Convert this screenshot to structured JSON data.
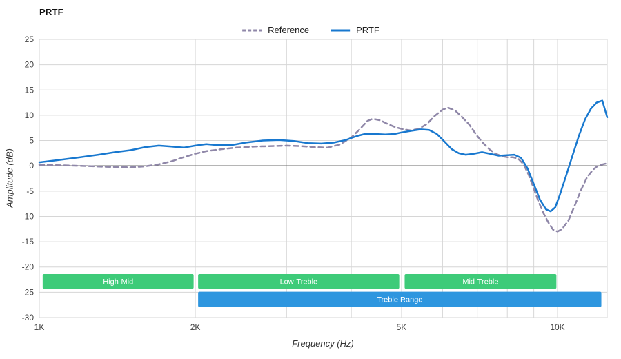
{
  "chart_data": {
    "type": "line",
    "title": "PRTF",
    "xlabel": "Frequency (Hz)",
    "ylabel": "Amplitude (dB)",
    "x_scale": "log",
    "xlim": [
      1000,
      12470
    ],
    "ylim": [
      -30,
      25
    ],
    "grid": true,
    "legend_position": "top-center",
    "y_ticks": [
      25,
      20,
      15,
      10,
      5,
      0,
      -5,
      -10,
      -15,
      -20,
      -25,
      -30
    ],
    "x_ticks": [
      {
        "value": 1000,
        "label": "1K"
      },
      {
        "value": 2000,
        "label": "2K"
      },
      {
        "value": 5000,
        "label": "5K"
      },
      {
        "value": 10000,
        "label": "10K"
      }
    ],
    "x_gridlines": [
      2000,
      3000,
      4000,
      5000,
      6000,
      7000,
      8000,
      9000,
      10000
    ],
    "zero_line_db": 0,
    "series": [
      {
        "name": "Reference",
        "color": "#8f87a8",
        "dashed": true,
        "points": [
          [
            1000,
            0.2
          ],
          [
            1100,
            0.1
          ],
          [
            1200,
            0.0
          ],
          [
            1350,
            -0.2
          ],
          [
            1500,
            -0.3
          ],
          [
            1600,
            -0.1
          ],
          [
            1700,
            0.3
          ],
          [
            1800,
            0.9
          ],
          [
            1900,
            1.7
          ],
          [
            2000,
            2.4
          ],
          [
            2100,
            2.9
          ],
          [
            2250,
            3.3
          ],
          [
            2400,
            3.6
          ],
          [
            2600,
            3.8
          ],
          [
            2800,
            3.9
          ],
          [
            3000,
            4.0
          ],
          [
            3200,
            3.9
          ],
          [
            3400,
            3.7
          ],
          [
            3600,
            3.6
          ],
          [
            3800,
            4.2
          ],
          [
            4000,
            5.6
          ],
          [
            4150,
            7.2
          ],
          [
            4300,
            8.9
          ],
          [
            4400,
            9.3
          ],
          [
            4550,
            9.0
          ],
          [
            4700,
            8.3
          ],
          [
            4850,
            7.7
          ],
          [
            5000,
            7.3
          ],
          [
            5200,
            7.0
          ],
          [
            5400,
            7.3
          ],
          [
            5600,
            8.3
          ],
          [
            5800,
            9.9
          ],
          [
            6000,
            11.1
          ],
          [
            6150,
            11.5
          ],
          [
            6350,
            10.9
          ],
          [
            6550,
            9.6
          ],
          [
            6750,
            8.2
          ],
          [
            7000,
            5.9
          ],
          [
            7200,
            4.4
          ],
          [
            7400,
            3.2
          ],
          [
            7600,
            2.4
          ],
          [
            7800,
            1.9
          ],
          [
            8000,
            1.7
          ],
          [
            8200,
            1.7
          ],
          [
            8400,
            1.4
          ],
          [
            8600,
            0.3
          ],
          [
            8800,
            -1.8
          ],
          [
            9000,
            -4.5
          ],
          [
            9200,
            -7.2
          ],
          [
            9400,
            -9.4
          ],
          [
            9600,
            -11.2
          ],
          [
            9800,
            -12.6
          ],
          [
            10000,
            -13.0
          ],
          [
            10200,
            -12.5
          ],
          [
            10500,
            -10.8
          ],
          [
            10800,
            -7.8
          ],
          [
            11100,
            -4.8
          ],
          [
            11400,
            -2.3
          ],
          [
            11700,
            -0.8
          ],
          [
            12000,
            0.1
          ],
          [
            12470,
            0.5
          ]
        ]
      },
      {
        "name": "PRTF",
        "color": "#1878cf",
        "dashed": false,
        "points": [
          [
            1000,
            0.7
          ],
          [
            1100,
            1.2
          ],
          [
            1200,
            1.7
          ],
          [
            1300,
            2.2
          ],
          [
            1400,
            2.7
          ],
          [
            1500,
            3.1
          ],
          [
            1600,
            3.7
          ],
          [
            1700,
            4.0
          ],
          [
            1800,
            3.8
          ],
          [
            1900,
            3.6
          ],
          [
            2000,
            4.0
          ],
          [
            2100,
            4.3
          ],
          [
            2200,
            4.1
          ],
          [
            2350,
            4.1
          ],
          [
            2500,
            4.6
          ],
          [
            2700,
            5.0
          ],
          [
            2900,
            5.1
          ],
          [
            3100,
            4.9
          ],
          [
            3300,
            4.5
          ],
          [
            3500,
            4.4
          ],
          [
            3700,
            4.6
          ],
          [
            3900,
            5.1
          ],
          [
            4100,
            5.9
          ],
          [
            4250,
            6.3
          ],
          [
            4450,
            6.3
          ],
          [
            4650,
            6.2
          ],
          [
            4850,
            6.3
          ],
          [
            5000,
            6.6
          ],
          [
            5200,
            6.9
          ],
          [
            5450,
            7.2
          ],
          [
            5650,
            7.1
          ],
          [
            5850,
            6.3
          ],
          [
            6050,
            4.8
          ],
          [
            6250,
            3.3
          ],
          [
            6450,
            2.5
          ],
          [
            6650,
            2.2
          ],
          [
            6900,
            2.4
          ],
          [
            7150,
            2.7
          ],
          [
            7400,
            2.4
          ],
          [
            7700,
            2.0
          ],
          [
            8000,
            2.1
          ],
          [
            8250,
            2.2
          ],
          [
            8500,
            1.6
          ],
          [
            8750,
            -0.5
          ],
          [
            9000,
            -3.6
          ],
          [
            9250,
            -6.7
          ],
          [
            9500,
            -8.6
          ],
          [
            9700,
            -9.0
          ],
          [
            9900,
            -8.2
          ],
          [
            10100,
            -5.8
          ],
          [
            10400,
            -1.8
          ],
          [
            10700,
            2.2
          ],
          [
            11000,
            6.0
          ],
          [
            11300,
            9.2
          ],
          [
            11600,
            11.3
          ],
          [
            11900,
            12.5
          ],
          [
            12200,
            12.9
          ],
          [
            12470,
            9.6
          ]
        ]
      }
    ],
    "bands": [
      {
        "label": "High-Mid",
        "from_hz": 1015,
        "to_hz": 1985,
        "top_db": -21.4,
        "bottom_db": -24.3,
        "color": "#3ecb79",
        "text_color": "#ffffff"
      },
      {
        "label": "Low-Treble",
        "from_hz": 2025,
        "to_hz": 4950,
        "top_db": -21.4,
        "bottom_db": -24.3,
        "color": "#3ecb79",
        "text_color": "#ffffff"
      },
      {
        "label": "Mid-Treble",
        "from_hz": 5070,
        "to_hz": 9950,
        "top_db": -21.4,
        "bottom_db": -24.3,
        "color": "#3ecb79",
        "text_color": "#ffffff"
      },
      {
        "label": "Treble Range",
        "from_hz": 2025,
        "to_hz": 12150,
        "top_db": -24.9,
        "bottom_db": -27.9,
        "color": "#2e96df",
        "text_color": "#ffffff"
      }
    ],
    "colors": {
      "grid": "#d6d6d6",
      "zero_line": "#444444",
      "tick_text": "#404040"
    }
  }
}
